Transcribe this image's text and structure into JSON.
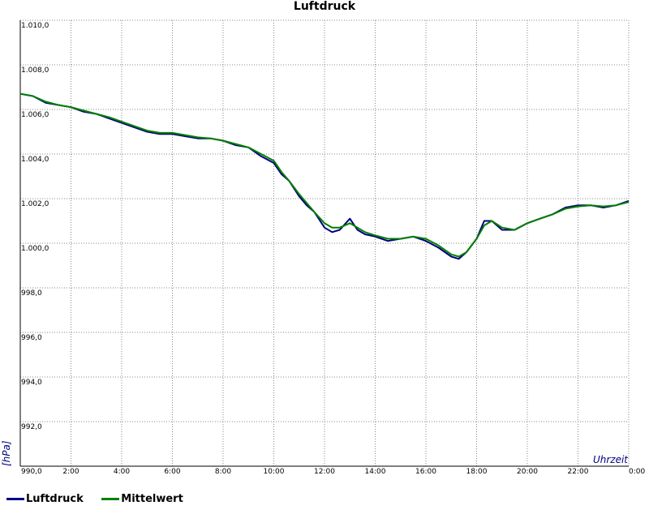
{
  "chart_data": {
    "type": "line",
    "title": "Luftdruck",
    "xlabel": "Uhrzeit",
    "ylabel": "[hPa]",
    "xlim": [
      0,
      24
    ],
    "ylim": [
      990,
      1010
    ],
    "grid": true,
    "legend_position": "bottom-left",
    "x_ticks": [
      "2:00",
      "4:00",
      "6:00",
      "8:00",
      "10:00",
      "12:00",
      "14:00",
      "16:00",
      "18:00",
      "20:00",
      "22:00",
      "0:00"
    ],
    "y_ticks": [
      "990,0",
      "992,0",
      "994,0",
      "996,0",
      "998,0",
      "1.000,0",
      "1.002,0",
      "1.004,0",
      "1.006,0",
      "1.008,0",
      "1.010,0"
    ],
    "series": [
      {
        "name": "Luftdruck",
        "color": "#000080",
        "x": [
          0,
          0.5,
          1,
          1.5,
          2,
          2.5,
          3,
          3.5,
          4,
          4.5,
          5,
          5.5,
          6,
          6.5,
          7,
          7.5,
          8,
          8.5,
          9,
          9.5,
          10,
          10.3,
          10.6,
          11,
          11.3,
          11.6,
          12,
          12.3,
          12.6,
          13,
          13.3,
          13.6,
          14,
          14.5,
          15,
          15.5,
          16,
          16.5,
          17,
          17.3,
          17.6,
          18,
          18.3,
          18.6,
          19,
          19.5,
          20,
          20.5,
          21,
          21.5,
          22,
          22.5,
          23,
          23.5,
          24
        ],
        "values": [
          1006.7,
          1006.6,
          1006.3,
          1006.2,
          1006.1,
          1005.9,
          1005.8,
          1005.6,
          1005.4,
          1005.2,
          1005.0,
          1004.9,
          1004.9,
          1004.8,
          1004.7,
          1004.7,
          1004.6,
          1004.4,
          1004.3,
          1003.9,
          1003.6,
          1003.1,
          1002.8,
          1002.1,
          1001.7,
          1001.4,
          1000.7,
          1000.5,
          1000.6,
          1001.1,
          1000.6,
          1000.4,
          1000.3,
          1000.1,
          1000.2,
          1000.3,
          1000.1,
          999.8,
          999.4,
          999.3,
          999.6,
          1000.2,
          1001.0,
          1001.0,
          1000.6,
          1000.6,
          1000.9,
          1001.1,
          1001.3,
          1001.6,
          1001.7,
          1001.7,
          1001.6,
          1001.7,
          1001.9
        ]
      },
      {
        "name": "Mittelwert",
        "color": "#008000",
        "x": [
          0,
          0.5,
          1,
          1.5,
          2,
          2.5,
          3,
          3.5,
          4,
          4.5,
          5,
          5.5,
          6,
          6.5,
          7,
          7.5,
          8,
          8.5,
          9,
          9.5,
          10,
          10.3,
          10.6,
          11,
          11.3,
          11.6,
          12,
          12.3,
          12.6,
          13,
          13.3,
          13.6,
          14,
          14.5,
          15,
          15.5,
          16,
          16.5,
          17,
          17.3,
          17.6,
          18,
          18.3,
          18.6,
          19,
          19.5,
          20,
          20.5,
          21,
          21.5,
          22,
          22.5,
          23,
          23.5,
          24
        ],
        "values": [
          1006.7,
          1006.6,
          1006.35,
          1006.2,
          1006.1,
          1005.95,
          1005.8,
          1005.65,
          1005.45,
          1005.25,
          1005.05,
          1004.95,
          1004.95,
          1004.85,
          1004.75,
          1004.7,
          1004.6,
          1004.45,
          1004.3,
          1004.0,
          1003.7,
          1003.2,
          1002.8,
          1002.2,
          1001.8,
          1001.4,
          1000.9,
          1000.7,
          1000.7,
          1000.9,
          1000.7,
          1000.5,
          1000.35,
          1000.2,
          1000.2,
          1000.3,
          1000.2,
          999.9,
          999.5,
          999.4,
          999.6,
          1000.2,
          1000.8,
          1001.0,
          1000.7,
          1000.6,
          1000.9,
          1001.1,
          1001.3,
          1001.55,
          1001.65,
          1001.7,
          1001.65,
          1001.7,
          1001.85
        ]
      }
    ]
  }
}
